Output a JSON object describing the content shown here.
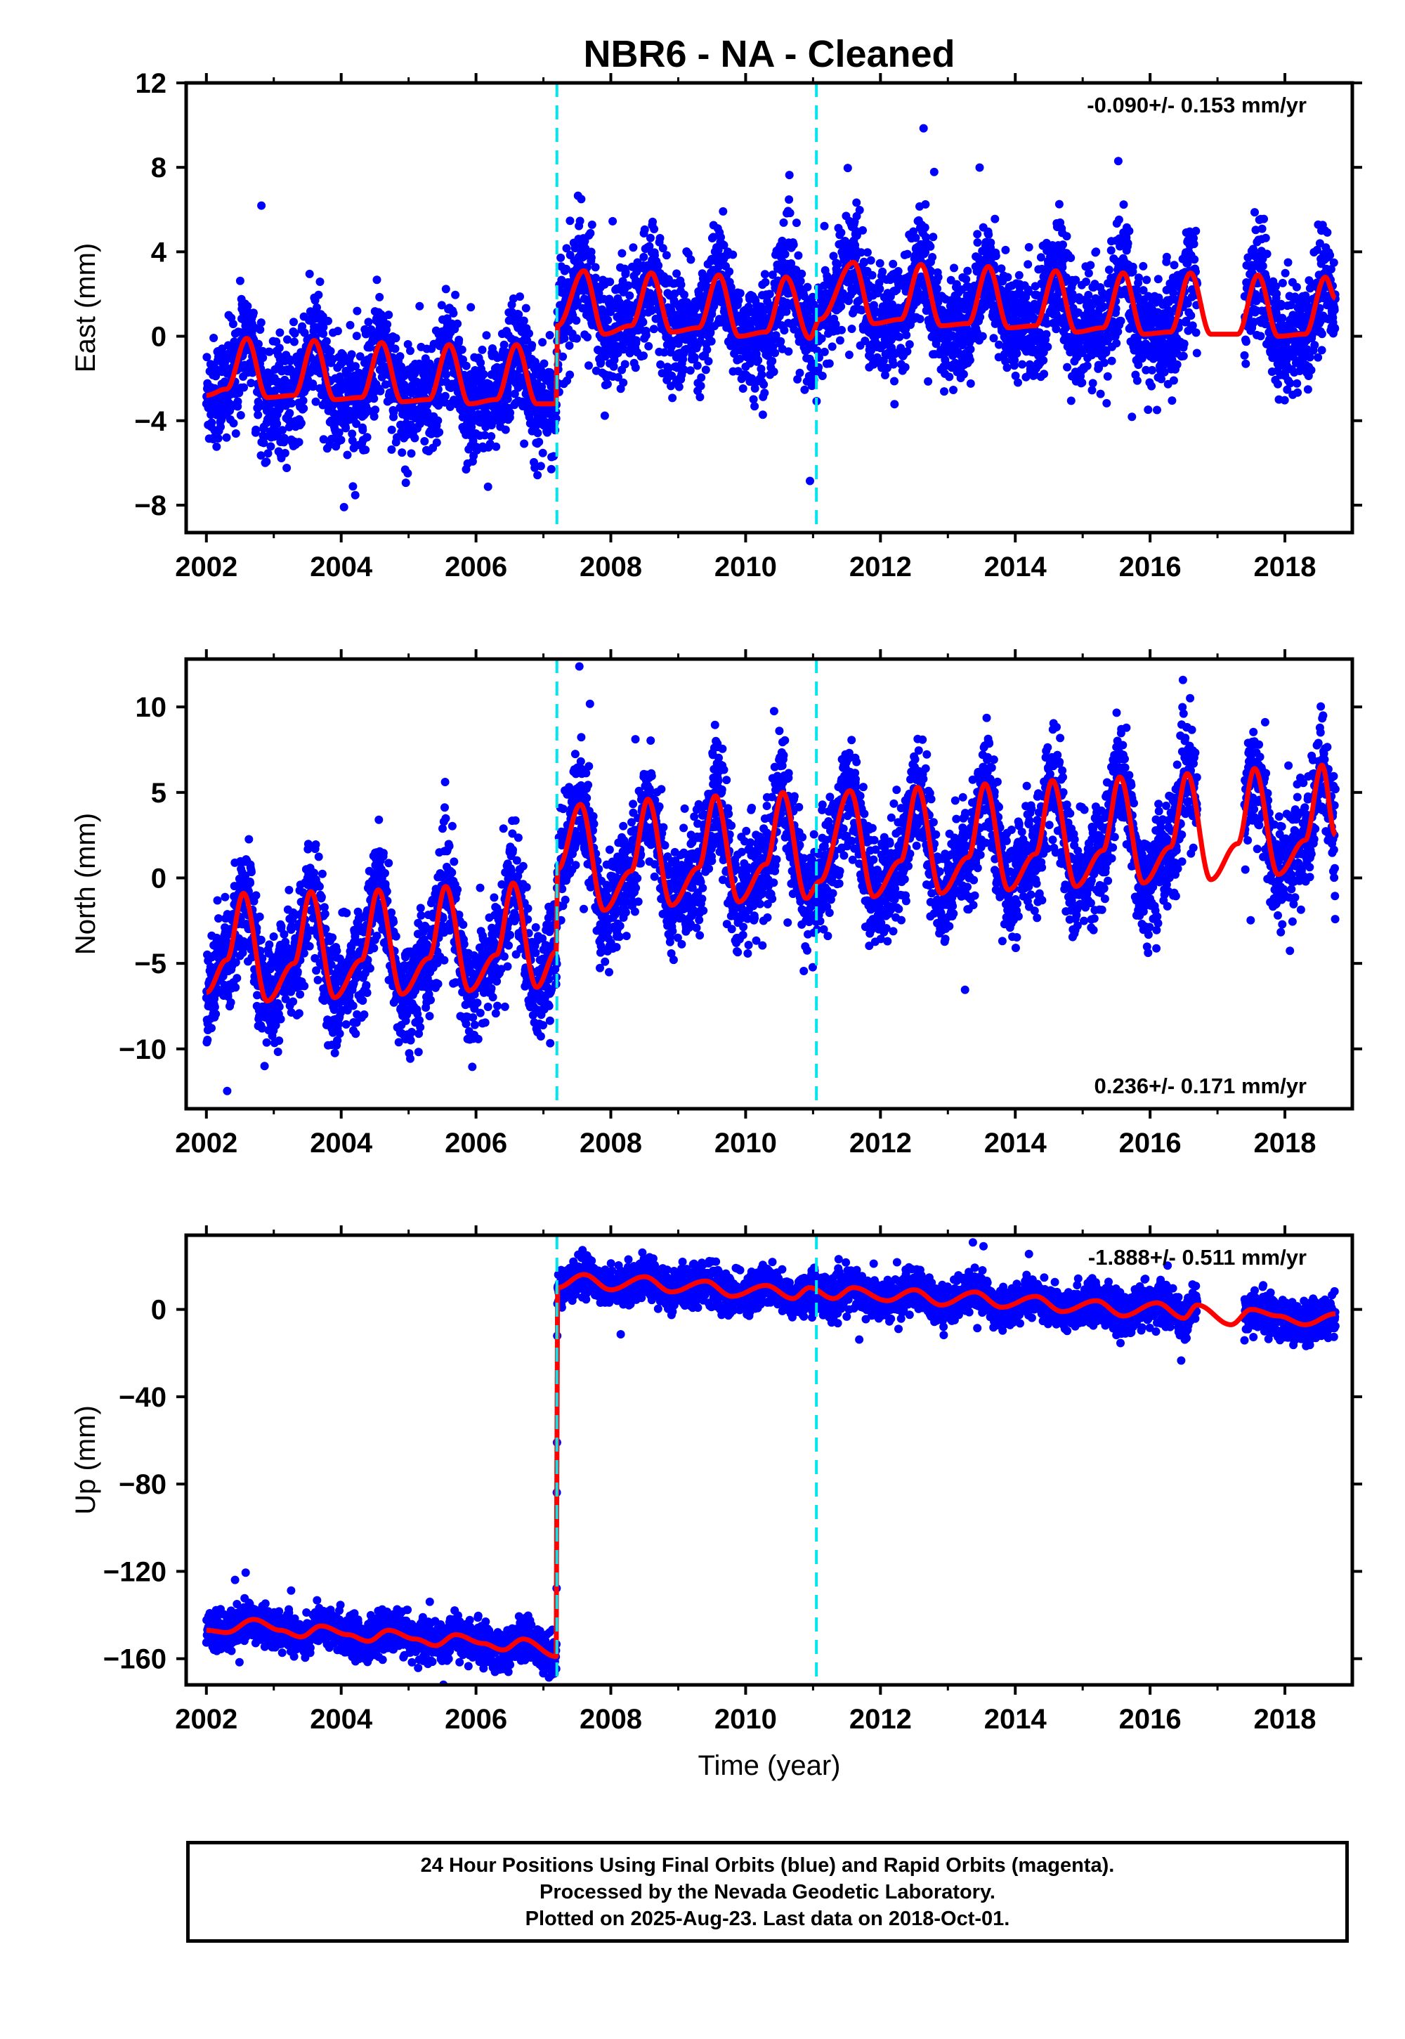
{
  "title": "NBR6  - NA - Cleaned",
  "colors": {
    "points": "#0000ff",
    "fit": "#ff0000",
    "breaks": "#00e5ee",
    "axis": "#000000"
  },
  "chart_data": [
    {
      "type": "scatter",
      "name": "east",
      "ylabel": "East (mm)",
      "xlabel": "",
      "xlim": [
        2001.7,
        2019.0
      ],
      "ylim": [
        -9.3,
        12.0
      ],
      "xticks": [
        2002,
        2004,
        2006,
        2008,
        2010,
        2012,
        2014,
        2016,
        2018
      ],
      "yticks": [
        -8,
        -4,
        0,
        4,
        8,
        12
      ],
      "rate_label": "-0.090+/- 0.153 mm/yr",
      "rate_position": "top-right",
      "break_lines": [
        2007.2,
        2011.05
      ],
      "data_gap": [
        2016.7,
        2017.4
      ],
      "segments": [
        {
          "start": 2002.0,
          "end": 2007.2,
          "offset": -2.9,
          "amplitude": 1.5,
          "trend": 0.0,
          "annual_phase": 0.0
        },
        {
          "start": 2007.2,
          "end": 2018.75,
          "offset": 0.9,
          "amplitude": 1.4,
          "trend": -0.09,
          "annual_phase": 0.0
        }
      ],
      "scatter": 1.3,
      "fit": [
        [
          2002.0,
          -2.8
        ],
        [
          2002.3,
          -2.5
        ],
        [
          2002.6,
          -0.1
        ],
        [
          2002.9,
          -2.9
        ],
        [
          2003.3,
          -2.8
        ],
        [
          2003.6,
          -0.2
        ],
        [
          2003.9,
          -3.0
        ],
        [
          2004.3,
          -2.9
        ],
        [
          2004.6,
          -0.3
        ],
        [
          2004.9,
          -3.1
        ],
        [
          2005.3,
          -3.0
        ],
        [
          2005.6,
          -0.4
        ],
        [
          2005.9,
          -3.2
        ],
        [
          2006.3,
          -3.0
        ],
        [
          2006.6,
          -0.4
        ],
        [
          2006.9,
          -3.2
        ],
        [
          2007.19,
          -3.2
        ],
        [
          2007.21,
          0.5
        ],
        [
          2007.6,
          3.1
        ],
        [
          2007.9,
          0.1
        ],
        [
          2008.3,
          0.5
        ],
        [
          2008.6,
          3.0
        ],
        [
          2008.9,
          0.2
        ],
        [
          2009.3,
          0.4
        ],
        [
          2009.6,
          2.9
        ],
        [
          2009.9,
          0.0
        ],
        [
          2010.3,
          0.2
        ],
        [
          2010.6,
          2.8
        ],
        [
          2010.95,
          -0.1
        ],
        [
          2011.1,
          0.8
        ],
        [
          2011.6,
          3.5
        ],
        [
          2011.9,
          0.6
        ],
        [
          2012.3,
          0.8
        ],
        [
          2012.6,
          3.4
        ],
        [
          2012.9,
          0.5
        ],
        [
          2013.3,
          0.6
        ],
        [
          2013.6,
          3.3
        ],
        [
          2013.9,
          0.4
        ],
        [
          2014.3,
          0.5
        ],
        [
          2014.6,
          3.1
        ],
        [
          2014.9,
          0.2
        ],
        [
          2015.3,
          0.4
        ],
        [
          2015.6,
          3.0
        ],
        [
          2015.9,
          0.1
        ],
        [
          2016.3,
          0.2
        ],
        [
          2016.6,
          3.0
        ],
        [
          2016.9,
          0.1
        ],
        [
          2017.3,
          0.1
        ],
        [
          2017.6,
          2.9
        ],
        [
          2017.9,
          0.0
        ],
        [
          2018.3,
          0.1
        ],
        [
          2018.6,
          2.8
        ],
        [
          2018.75,
          1.8
        ]
      ]
    },
    {
      "type": "scatter",
      "name": "north",
      "ylabel": "North (mm)",
      "xlabel": "",
      "xlim": [
        2001.7,
        2019.0
      ],
      "ylim": [
        -13.5,
        12.8
      ],
      "xticks": [
        2002,
        2004,
        2006,
        2008,
        2010,
        2012,
        2014,
        2016,
        2018
      ],
      "yticks": [
        -10,
        -5,
        0,
        5,
        10
      ],
      "rate_label": "0.236+/- 0.171 mm/yr",
      "rate_position": "bottom-right",
      "break_lines": [
        2007.2,
        2011.05
      ],
      "data_gap": [
        2016.7,
        2017.4
      ],
      "scatter": 1.6,
      "fit": [
        [
          2002.0,
          -6.7
        ],
        [
          2002.3,
          -4.8
        ],
        [
          2002.55,
          -0.9
        ],
        [
          2002.9,
          -7.2
        ],
        [
          2003.3,
          -5.0
        ],
        [
          2003.55,
          -0.8
        ],
        [
          2003.9,
          -7.0
        ],
        [
          2004.3,
          -4.8
        ],
        [
          2004.55,
          -0.7
        ],
        [
          2004.9,
          -6.8
        ],
        [
          2005.3,
          -4.7
        ],
        [
          2005.55,
          -0.5
        ],
        [
          2005.9,
          -6.6
        ],
        [
          2006.3,
          -4.5
        ],
        [
          2006.55,
          -0.3
        ],
        [
          2006.9,
          -6.4
        ],
        [
          2007.19,
          -4.3
        ],
        [
          2007.21,
          0.5
        ],
        [
          2007.55,
          4.3
        ],
        [
          2007.9,
          -1.9
        ],
        [
          2008.3,
          0.4
        ],
        [
          2008.55,
          4.6
        ],
        [
          2008.9,
          -1.6
        ],
        [
          2009.3,
          0.6
        ],
        [
          2009.55,
          4.8
        ],
        [
          2009.9,
          -1.4
        ],
        [
          2010.3,
          0.8
        ],
        [
          2010.55,
          5.0
        ],
        [
          2010.9,
          -1.2
        ],
        [
          2011.1,
          -0.2
        ],
        [
          2011.55,
          5.1
        ],
        [
          2011.9,
          -1.1
        ],
        [
          2012.3,
          1.0
        ],
        [
          2012.55,
          5.3
        ],
        [
          2012.9,
          -0.9
        ],
        [
          2013.3,
          1.2
        ],
        [
          2013.55,
          5.5
        ],
        [
          2013.9,
          -0.7
        ],
        [
          2014.3,
          1.4
        ],
        [
          2014.55,
          5.7
        ],
        [
          2014.9,
          -0.5
        ],
        [
          2015.3,
          1.6
        ],
        [
          2015.55,
          5.9
        ],
        [
          2015.9,
          -0.3
        ],
        [
          2016.3,
          1.8
        ],
        [
          2016.55,
          6.1
        ],
        [
          2016.9,
          -0.1
        ],
        [
          2017.3,
          2.0
        ],
        [
          2017.55,
          6.4
        ],
        [
          2017.9,
          0.2
        ],
        [
          2018.3,
          2.2
        ],
        [
          2018.55,
          6.6
        ],
        [
          2018.75,
          2.5
        ]
      ]
    },
    {
      "type": "scatter",
      "name": "up",
      "ylabel": "Up (mm)",
      "xlabel": "Time (year)",
      "xlim": [
        2001.7,
        2019.0
      ],
      "ylim": [
        -172,
        34
      ],
      "xticks": [
        2002,
        2004,
        2006,
        2008,
        2010,
        2012,
        2014,
        2016,
        2018
      ],
      "yticks": [
        -160,
        -120,
        -80,
        -40,
        0
      ],
      "rate_label": "-1.888+/- 0.511 mm/yr",
      "rate_position": "top-right",
      "break_lines": [
        2007.2,
        2011.05
      ],
      "data_gap": [
        2016.7,
        2017.4
      ],
      "scatter": 4.5,
      "fit": [
        [
          2002.0,
          -147
        ],
        [
          2002.3,
          -148
        ],
        [
          2002.7,
          -142
        ],
        [
          2003.1,
          -147
        ],
        [
          2003.4,
          -150
        ],
        [
          2003.7,
          -145
        ],
        [
          2004.1,
          -149
        ],
        [
          2004.4,
          -152
        ],
        [
          2004.7,
          -147
        ],
        [
          2005.1,
          -151
        ],
        [
          2005.4,
          -154
        ],
        [
          2005.7,
          -149
        ],
        [
          2006.1,
          -153
        ],
        [
          2006.4,
          -156
        ],
        [
          2006.7,
          -151
        ],
        [
          2007.19,
          -159
        ],
        [
          2007.21,
          10
        ],
        [
          2007.6,
          16
        ],
        [
          2008.0,
          9
        ],
        [
          2008.5,
          15
        ],
        [
          2008.9,
          8
        ],
        [
          2009.4,
          13
        ],
        [
          2009.8,
          6
        ],
        [
          2010.3,
          11
        ],
        [
          2010.7,
          5
        ],
        [
          2010.95,
          10
        ],
        [
          2011.3,
          5
        ],
        [
          2011.6,
          10
        ],
        [
          2012.1,
          4
        ],
        [
          2012.5,
          9
        ],
        [
          2012.9,
          2
        ],
        [
          2013.4,
          8
        ],
        [
          2013.8,
          1
        ],
        [
          2014.3,
          6
        ],
        [
          2014.7,
          -1
        ],
        [
          2015.2,
          4
        ],
        [
          2015.6,
          -3
        ],
        [
          2016.1,
          3
        ],
        [
          2016.5,
          -4
        ],
        [
          2016.7,
          2
        ],
        [
          2017.2,
          -7
        ],
        [
          2017.5,
          0
        ],
        [
          2017.9,
          -3
        ],
        [
          2018.3,
          -7
        ],
        [
          2018.75,
          -2
        ]
      ]
    }
  ],
  "footer": {
    "line1": "24 Hour Positions Using Final Orbits (blue) and Rapid Orbits (magenta).",
    "line2": "Processed by the Nevada Geodetic Laboratory.",
    "line3": "Plotted on 2025-Aug-23. Last data on 2018-Oct-01."
  }
}
